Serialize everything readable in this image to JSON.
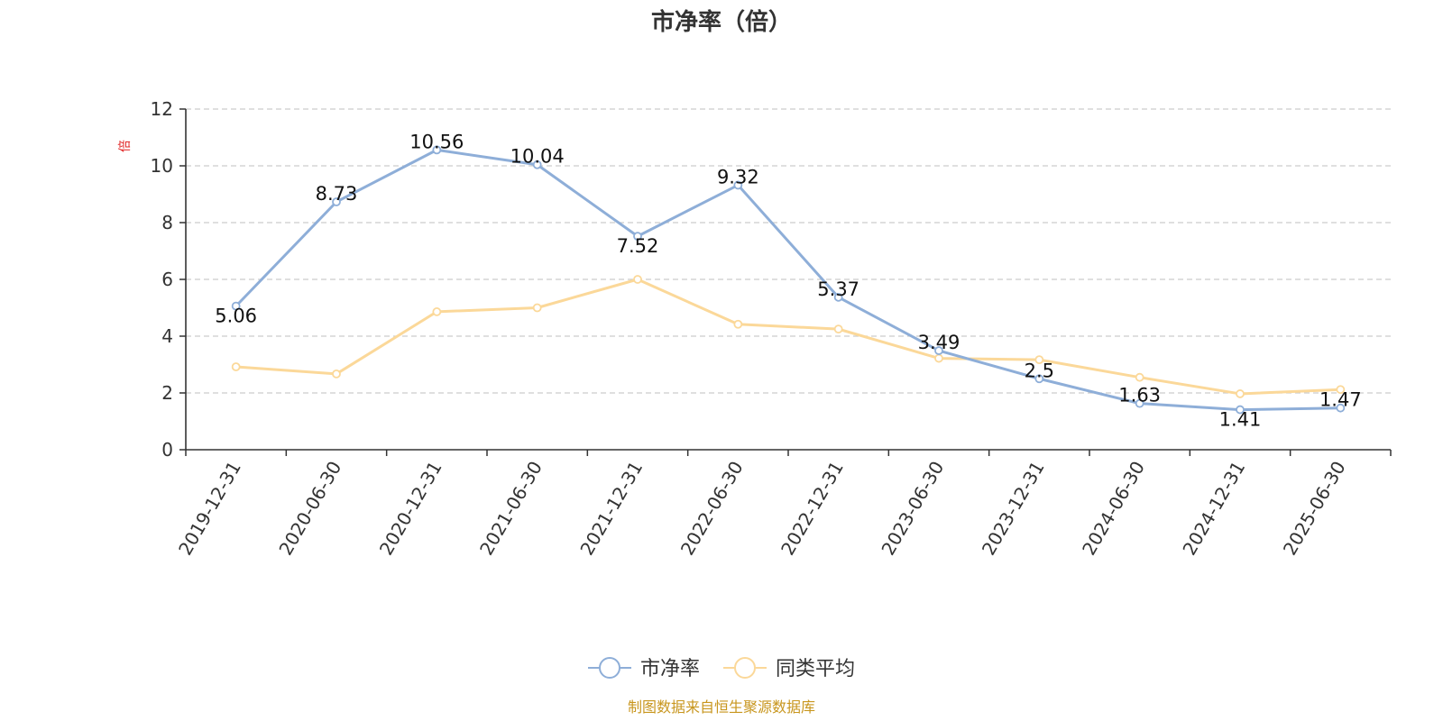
{
  "chart_data": {
    "type": "line",
    "title": "市净率（倍）",
    "ylabel": "倍",
    "xlabel": "",
    "categories": [
      "2019-12-31",
      "2020-06-30",
      "2020-12-31",
      "2021-06-30",
      "2021-12-31",
      "2022-06-30",
      "2022-12-31",
      "2023-06-30",
      "2023-12-31",
      "2024-06-30",
      "2024-12-31",
      "2025-06-30"
    ],
    "ylim": [
      0,
      12
    ],
    "yticks": [
      0,
      2,
      4,
      6,
      8,
      10,
      12
    ],
    "grid": true,
    "legend_position": "bottom",
    "series": [
      {
        "name": "市净率",
        "color": "#8eaed8",
        "values": [
          5.06,
          8.73,
          10.56,
          10.04,
          7.52,
          9.32,
          5.37,
          3.49,
          2.5,
          1.63,
          1.41,
          1.47
        ],
        "labels": [
          "5.06",
          "8.73",
          "10.56",
          "10.04",
          "7.52",
          "9.32",
          "5.37",
          "3.49",
          "2.5",
          "1.63",
          "1.41",
          "1.47"
        ],
        "show_labels": true
      },
      {
        "name": "同类平均",
        "color": "#fbd899",
        "values": [
          2.92,
          2.67,
          4.86,
          5.0,
          6.0,
          4.42,
          4.25,
          3.22,
          3.17,
          2.55,
          1.97,
          2.12
        ],
        "show_labels": false
      }
    ],
    "source": "制图数据来自恒生聚源数据库"
  }
}
